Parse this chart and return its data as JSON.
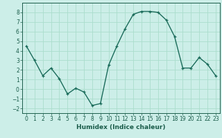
{
  "x": [
    0,
    1,
    2,
    3,
    4,
    5,
    6,
    7,
    8,
    9,
    10,
    11,
    12,
    13,
    14,
    15,
    16,
    17,
    18,
    19,
    20,
    21,
    22,
    23
  ],
  "y": [
    4.5,
    3.0,
    1.4,
    2.2,
    1.1,
    -0.5,
    0.1,
    -0.3,
    -1.7,
    -1.5,
    2.5,
    4.5,
    6.3,
    7.8,
    8.1,
    8.1,
    8.0,
    7.2,
    5.5,
    2.2,
    2.2,
    3.3,
    2.6,
    1.4
  ],
  "line_color": "#1a6b5a",
  "marker": "+",
  "marker_size": 3,
  "marker_linewidth": 0.9,
  "line_width": 1.0,
  "xlabel": "Humidex (Indice chaleur)",
  "xlabel_fontsize": 6.5,
  "xlabel_color": "#1a5c4a",
  "bg_color": "#cceee8",
  "grid_color": "#aaddcc",
  "yticks": [
    -2,
    -1,
    0,
    1,
    2,
    3,
    4,
    5,
    6,
    7,
    8
  ],
  "xticks": [
    0,
    1,
    2,
    3,
    4,
    5,
    6,
    7,
    8,
    9,
    10,
    11,
    12,
    13,
    14,
    15,
    16,
    17,
    18,
    19,
    20,
    21,
    22,
    23
  ],
  "ylim": [
    -2.5,
    9.0
  ],
  "xlim": [
    -0.5,
    23.5
  ],
  "tick_fontsize": 5.5,
  "tick_color": "#1a5c4a",
  "spine_color": "#1a5c4a"
}
